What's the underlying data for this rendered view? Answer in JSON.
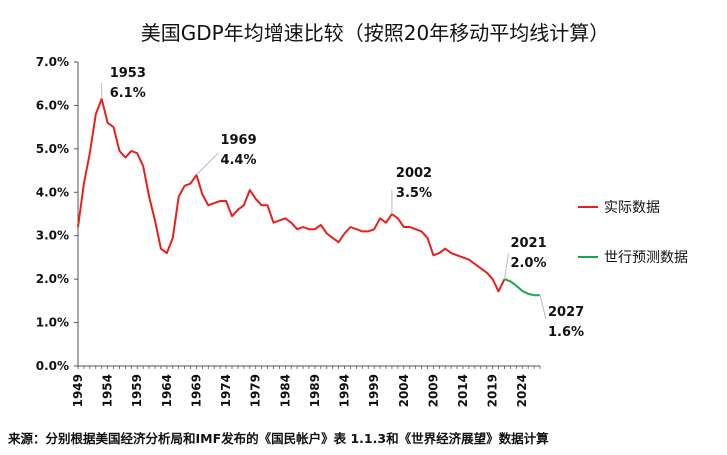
{
  "chart_data": {
    "type": "line",
    "title": "美国GDP年均增速比较（按照20年移动平均线计算）",
    "source": "来源：分别根据美国经济分析局和IMF发布的《国民帐户》表 1.1.3和《世界经济展望》数据计算",
    "xlabel": "",
    "ylabel": "",
    "ylim": [
      0,
      7
    ],
    "xlim": [
      1949,
      2027
    ],
    "y_ticks": [
      "0.0%",
      "1.0%",
      "2.0%",
      "3.0%",
      "4.0%",
      "5.0%",
      "6.0%",
      "7.0%"
    ],
    "x_ticks": [
      "1949",
      "1954",
      "1959",
      "1964",
      "1969",
      "1974",
      "1979",
      "1984",
      "1989",
      "1994",
      "1999",
      "2004",
      "2009",
      "2014",
      "2019",
      "2024"
    ],
    "grid": false,
    "legend_position": "right",
    "colors": {
      "actual": "#e8201c",
      "forecast": "#19a64a"
    },
    "series": [
      {
        "name": "实际数据",
        "x": [
          1949,
          1950,
          1951,
          1952,
          1953,
          1954,
          1955,
          1956,
          1957,
          1958,
          1959,
          1960,
          1961,
          1962,
          1963,
          1964,
          1965,
          1966,
          1967,
          1968,
          1969,
          1970,
          1971,
          1972,
          1973,
          1974,
          1975,
          1976,
          1977,
          1978,
          1979,
          1980,
          1981,
          1982,
          1983,
          1984,
          1985,
          1986,
          1987,
          1988,
          1989,
          1990,
          1991,
          1992,
          1993,
          1994,
          1995,
          1996,
          1997,
          1998,
          1999,
          2000,
          2001,
          2002,
          2003,
          2004,
          2005,
          2006,
          2007,
          2008,
          2009,
          2010,
          2011,
          2012,
          2013,
          2014,
          2015,
          2016,
          2017,
          2018,
          2019,
          2020,
          2021
        ],
        "values": [
          3.2,
          4.2,
          4.9,
          5.8,
          6.15,
          5.6,
          5.5,
          4.95,
          4.8,
          4.95,
          4.9,
          4.6,
          3.9,
          3.35,
          2.7,
          2.6,
          2.95,
          3.9,
          4.15,
          4.2,
          4.4,
          3.95,
          3.7,
          3.75,
          3.8,
          3.8,
          3.45,
          3.6,
          3.7,
          4.05,
          3.85,
          3.7,
          3.7,
          3.3,
          3.35,
          3.4,
          3.3,
          3.15,
          3.2,
          3.15,
          3.15,
          3.25,
          3.05,
          2.95,
          2.85,
          3.05,
          3.2,
          3.15,
          3.1,
          3.1,
          3.15,
          3.4,
          3.3,
          3.5,
          3.4,
          3.2,
          3.2,
          3.15,
          3.1,
          2.95,
          2.55,
          2.6,
          2.7,
          2.6,
          2.55,
          2.5,
          2.45,
          2.35,
          2.25,
          2.15,
          2.0,
          1.72,
          2.0
        ]
      },
      {
        "name": "世行预测数据",
        "x": [
          2021,
          2022,
          2023,
          2024,
          2025,
          2026,
          2027
        ],
        "values": [
          2.0,
          1.95,
          1.85,
          1.73,
          1.66,
          1.63,
          1.63
        ]
      }
    ],
    "annotations": [
      {
        "year": "1953",
        "value": "6.1%"
      },
      {
        "year": "1969",
        "value": "4.4%"
      },
      {
        "year": "2002",
        "value": "3.5%"
      },
      {
        "year": "2021",
        "value": "2.0%"
      },
      {
        "year": "2027",
        "value": "1.6%"
      }
    ]
  }
}
